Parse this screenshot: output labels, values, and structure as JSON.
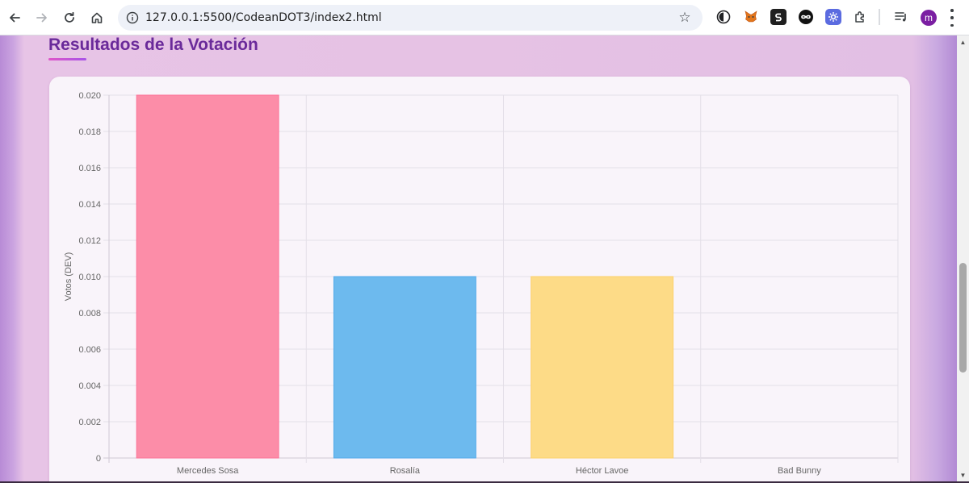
{
  "browser": {
    "url": "127.0.0.1:5500/CodeanDOT3/index2.html",
    "profile_initial": "m",
    "icons": {
      "back": "back-arrow-icon",
      "forward": "forward-arrow-icon",
      "reload": "reload-icon",
      "home": "home-icon",
      "site_info": "site-info-icon",
      "bookmark": "star-icon",
      "menu": "kebab-menu-icon"
    },
    "extensions": [
      {
        "name": "dark-reader-extension-icon"
      },
      {
        "name": "metamask-fox-icon"
      },
      {
        "name": "s-extension-icon"
      },
      {
        "name": "infinity-extension-icon"
      },
      {
        "name": "gear-extension-icon"
      },
      {
        "name": "puzzle-extensions-icon"
      },
      {
        "name": "reading-list-icon"
      }
    ]
  },
  "page": {
    "title": "Resultados de la Votación"
  },
  "chart_data": {
    "type": "bar",
    "categories": [
      "Mercedes Sosa",
      "Rosalía",
      "Héctor Lavoe",
      "Bad Bunny"
    ],
    "values": [
      0.02,
      0.01,
      0.01,
      0
    ],
    "colors": [
      "#fc8da8",
      "#6dbaee",
      "#fddb87",
      "#d8a6f0"
    ],
    "border_colors": [
      "#fb7196",
      "#51a9ea",
      "#fcd06a",
      "#c98be8"
    ],
    "ylabel": "Votos (DEV)",
    "xlabel": "",
    "ylim": [
      0,
      0.02
    ],
    "yticks": [
      "0",
      "0.002",
      "0.004",
      "0.006",
      "0.008",
      "0.010",
      "0.012",
      "0.014",
      "0.016",
      "0.018",
      "0.020"
    ],
    "grid": true,
    "legend": "none"
  }
}
